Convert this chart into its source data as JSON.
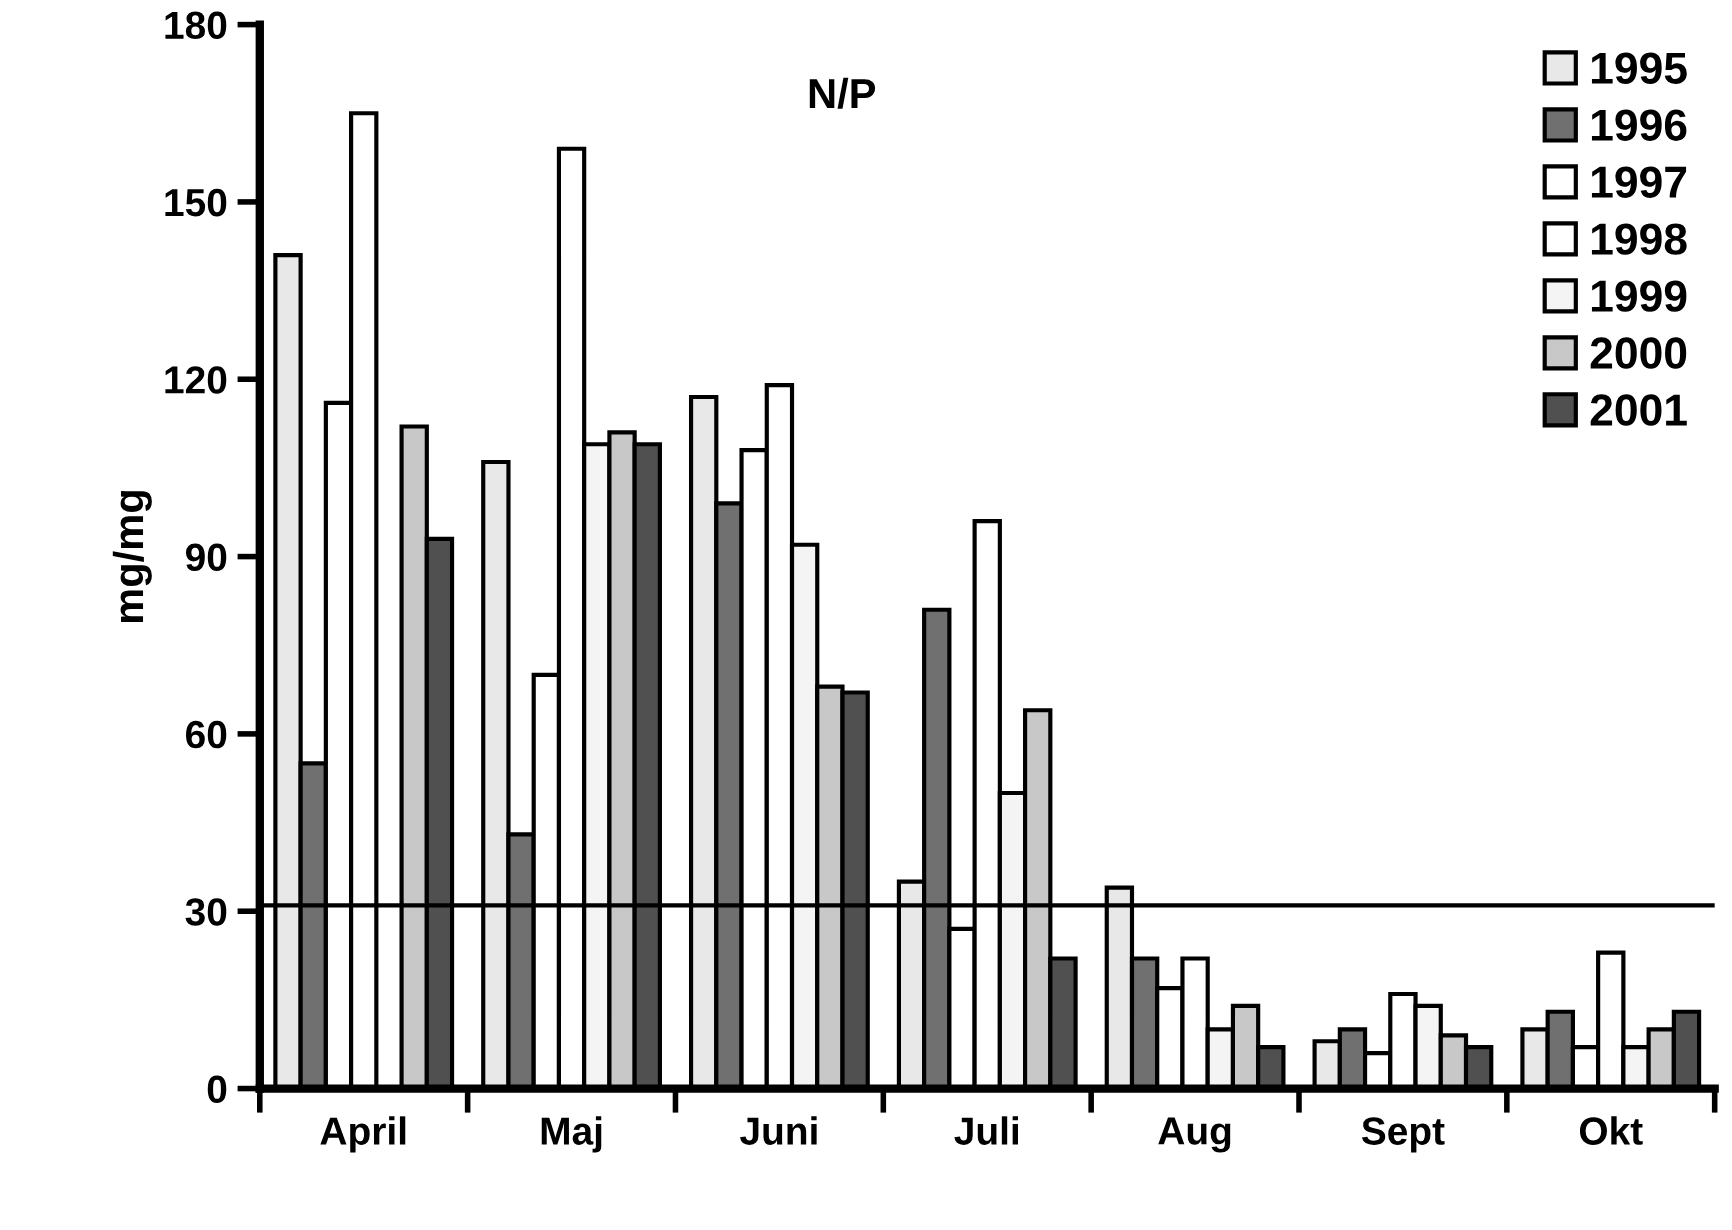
{
  "chart_data": {
    "type": "bar",
    "title": "N/P",
    "ylabel": "mg/mg",
    "categories": [
      "April",
      "Maj",
      "Juni",
      "Juli",
      "Aug",
      "Sept",
      "Okt"
    ],
    "series": [
      {
        "name": "1995",
        "color": "#e8e8e8",
        "values": [
          141,
          106,
          117,
          35,
          34,
          8,
          10
        ]
      },
      {
        "name": "1996",
        "color": "#707070",
        "values": [
          55,
          43,
          99,
          81,
          22,
          10,
          13
        ]
      },
      {
        "name": "1997",
        "color": "#ffffff",
        "values": [
          116,
          70,
          108,
          27,
          17,
          6,
          7
        ]
      },
      {
        "name": "1998",
        "color": "#ffffff",
        "values": [
          165,
          159,
          119,
          96,
          22,
          16,
          23
        ]
      },
      {
        "name": "1999",
        "color": "#f4f4f4",
        "values": [
          null,
          109,
          92,
          50,
          10,
          14,
          7
        ]
      },
      {
        "name": "2000",
        "color": "#c8c8c8",
        "values": [
          112,
          111,
          68,
          64,
          14,
          9,
          10
        ]
      },
      {
        "name": "2001",
        "color": "#505050",
        "values": [
          93,
          109,
          67,
          22,
          7,
          7,
          13
        ]
      }
    ],
    "ylim": [
      0,
      180
    ],
    "yticks": [
      0,
      30,
      60,
      90,
      120,
      150,
      180
    ],
    "ref_lines": [
      {
        "axis": "y",
        "value": 31,
        "color": "#000000",
        "line_style": "solid"
      }
    ],
    "legend": "top right",
    "grid": false
  }
}
